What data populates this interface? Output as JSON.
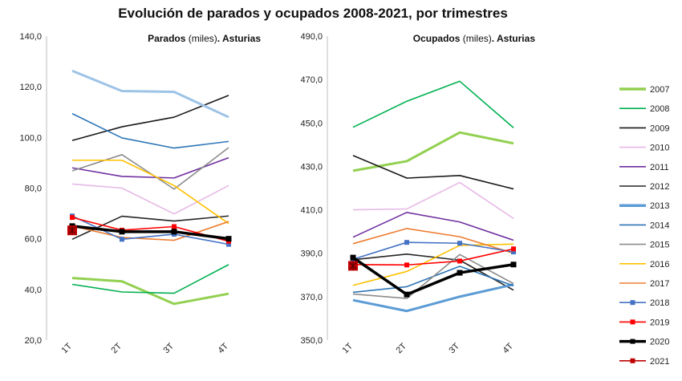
{
  "title": "Evolución de parados y ocupados 2008-2021, por trimestres",
  "chart_data": [
    {
      "type": "line",
      "subtitle_bold_1": "Parados",
      "subtitle_normal": " (miles)",
      "subtitle_bold_2": ". Asturias",
      "categories": [
        "1T",
        "2T",
        "3T",
        "4T"
      ],
      "ylim": [
        20,
        140
      ],
      "yticks": [
        "20,0",
        "40,0",
        "60,0",
        "80,0",
        "100,0",
        "120,0",
        "140,0"
      ],
      "grid": false,
      "series": [
        {
          "name": "2007",
          "color": "#92d050",
          "values": [
            44.5,
            43.2,
            34.3,
            38.3
          ]
        },
        {
          "name": "2008",
          "color": "#00b050",
          "values": [
            42.0,
            39.0,
            38.5,
            49.8
          ]
        },
        {
          "name": "2009",
          "color": "#1a1a1a",
          "values": [
            98.8,
            104.2,
            108.0,
            116.6
          ]
        },
        {
          "name": "2010",
          "color": "#e6b9e6",
          "values": [
            81.6,
            80.0,
            69.8,
            81.0
          ]
        },
        {
          "name": "2011",
          "color": "#7030a0",
          "values": [
            88.0,
            84.6,
            84.0,
            92.0
          ]
        },
        {
          "name": "2012",
          "color": "#262626",
          "values": [
            59.8,
            68.9,
            67.0,
            69.0
          ]
        },
        {
          "name": "2013",
          "color": "#9dc3e6",
          "values": [
            126.3,
            118.3,
            118.0,
            108.0
          ]
        },
        {
          "name": "2014",
          "color": "#2e75b6",
          "values": [
            109.4,
            99.8,
            95.8,
            98.4
          ]
        },
        {
          "name": "2015",
          "color": "#8c8c8c",
          "values": [
            86.8,
            93.2,
            79.6,
            96.0
          ]
        },
        {
          "name": "2016",
          "color": "#ffc000",
          "values": [
            91.0,
            91.0,
            81.0,
            66.0
          ]
        },
        {
          "name": "2017",
          "color": "#ed7d31",
          "values": [
            65.0,
            60.5,
            59.4,
            66.8
          ]
        },
        {
          "name": "2018",
          "color": "#4472c4",
          "values": [
            69.0,
            59.8,
            61.8,
            57.8
          ]
        },
        {
          "name": "2019",
          "color": "#ff0000",
          "values": [
            68.4,
            63.4,
            64.8,
            59.0
          ]
        },
        {
          "name": "2020",
          "color": "#000000",
          "values": [
            65.0,
            62.8,
            62.8,
            60.0
          ]
        },
        {
          "name": "2021",
          "color": "#c00000",
          "values": [
            63.3,
            null,
            null,
            null
          ]
        }
      ]
    },
    {
      "type": "line",
      "subtitle_bold_1": "Ocupados",
      "subtitle_normal": "  (miles)",
      "subtitle_bold_2": ". Asturias",
      "categories": [
        "1T",
        "2T",
        "3T",
        "4T"
      ],
      "ylim": [
        350,
        490
      ],
      "yticks": [
        "350,0",
        "370,0",
        "390,0",
        "410,0",
        "430,0",
        "450,0",
        "470,0",
        "490,0"
      ],
      "grid": false,
      "series": [
        {
          "name": "2007",
          "color": "#92d050",
          "values": [
            428.0,
            432.4,
            445.6,
            440.6
          ]
        },
        {
          "name": "2008",
          "color": "#00b050",
          "values": [
            448.0,
            460.0,
            469.2,
            447.8
          ]
        },
        {
          "name": "2009",
          "color": "#1a1a1a",
          "values": [
            435.0,
            424.6,
            425.8,
            419.6
          ]
        },
        {
          "name": "2010",
          "color": "#e6b9e6",
          "values": [
            410.0,
            410.4,
            422.6,
            406.0
          ]
        },
        {
          "name": "2011",
          "color": "#7030a0",
          "values": [
            397.4,
            408.8,
            404.4,
            396.0
          ]
        },
        {
          "name": "2012",
          "color": "#262626",
          "values": [
            387.0,
            389.6,
            386.8,
            373.0
          ]
        },
        {
          "name": "2013",
          "color": "#5b9bd5",
          "values": [
            368.4,
            363.4,
            370.0,
            375.6
          ]
        },
        {
          "name": "2014",
          "color": "#2e75b6",
          "values": [
            372.0,
            374.6,
            384.0,
            375.0
          ]
        },
        {
          "name": "2015",
          "color": "#8c8c8c",
          "values": [
            371.2,
            369.2,
            389.4,
            376.0
          ]
        },
        {
          "name": "2016",
          "color": "#ffc000",
          "values": [
            375.2,
            381.6,
            393.6,
            394.2
          ]
        },
        {
          "name": "2017",
          "color": "#ed7d31",
          "values": [
            394.4,
            401.4,
            397.6,
            390.0
          ]
        },
        {
          "name": "2018",
          "color": "#4472c4",
          "values": [
            387.2,
            395.0,
            394.6,
            390.6
          ]
        },
        {
          "name": "2019",
          "color": "#ff0000",
          "values": [
            384.8,
            384.6,
            386.4,
            392.0
          ]
        },
        {
          "name": "2020",
          "color": "#000000",
          "values": [
            388.0,
            371.0,
            381.0,
            384.8
          ]
        },
        {
          "name": "2021",
          "color": "#c00000",
          "values": [
            384.2,
            null,
            null,
            null
          ]
        }
      ]
    }
  ],
  "legend": {
    "placement": "right",
    "items": [
      {
        "name": "2007",
        "color": "#92d050",
        "marker": "none",
        "thick": true
      },
      {
        "name": "2008",
        "color": "#00b050",
        "marker": "none"
      },
      {
        "name": "2009",
        "color": "#1a1a1a",
        "marker": "none"
      },
      {
        "name": "2010",
        "color": "#e6b9e6",
        "marker": "none"
      },
      {
        "name": "2011",
        "color": "#7030a0",
        "marker": "none"
      },
      {
        "name": "2012",
        "color": "#262626",
        "marker": "none"
      },
      {
        "name": "2013",
        "color": "#5b9bd5",
        "marker": "none",
        "thick": true
      },
      {
        "name": "2014",
        "color": "#2e75b6",
        "marker": "none"
      },
      {
        "name": "2015",
        "color": "#8c8c8c",
        "marker": "none"
      },
      {
        "name": "2016",
        "color": "#ffc000",
        "marker": "none"
      },
      {
        "name": "2017",
        "color": "#ed7d31",
        "marker": "none"
      },
      {
        "name": "2018",
        "color": "#4472c4",
        "marker": "square"
      },
      {
        "name": "2019",
        "color": "#ff0000",
        "marker": "square"
      },
      {
        "name": "2020",
        "color": "#000000",
        "marker": "square",
        "thick": true
      },
      {
        "name": "2021",
        "color": "#c00000",
        "marker": "star"
      }
    ]
  }
}
